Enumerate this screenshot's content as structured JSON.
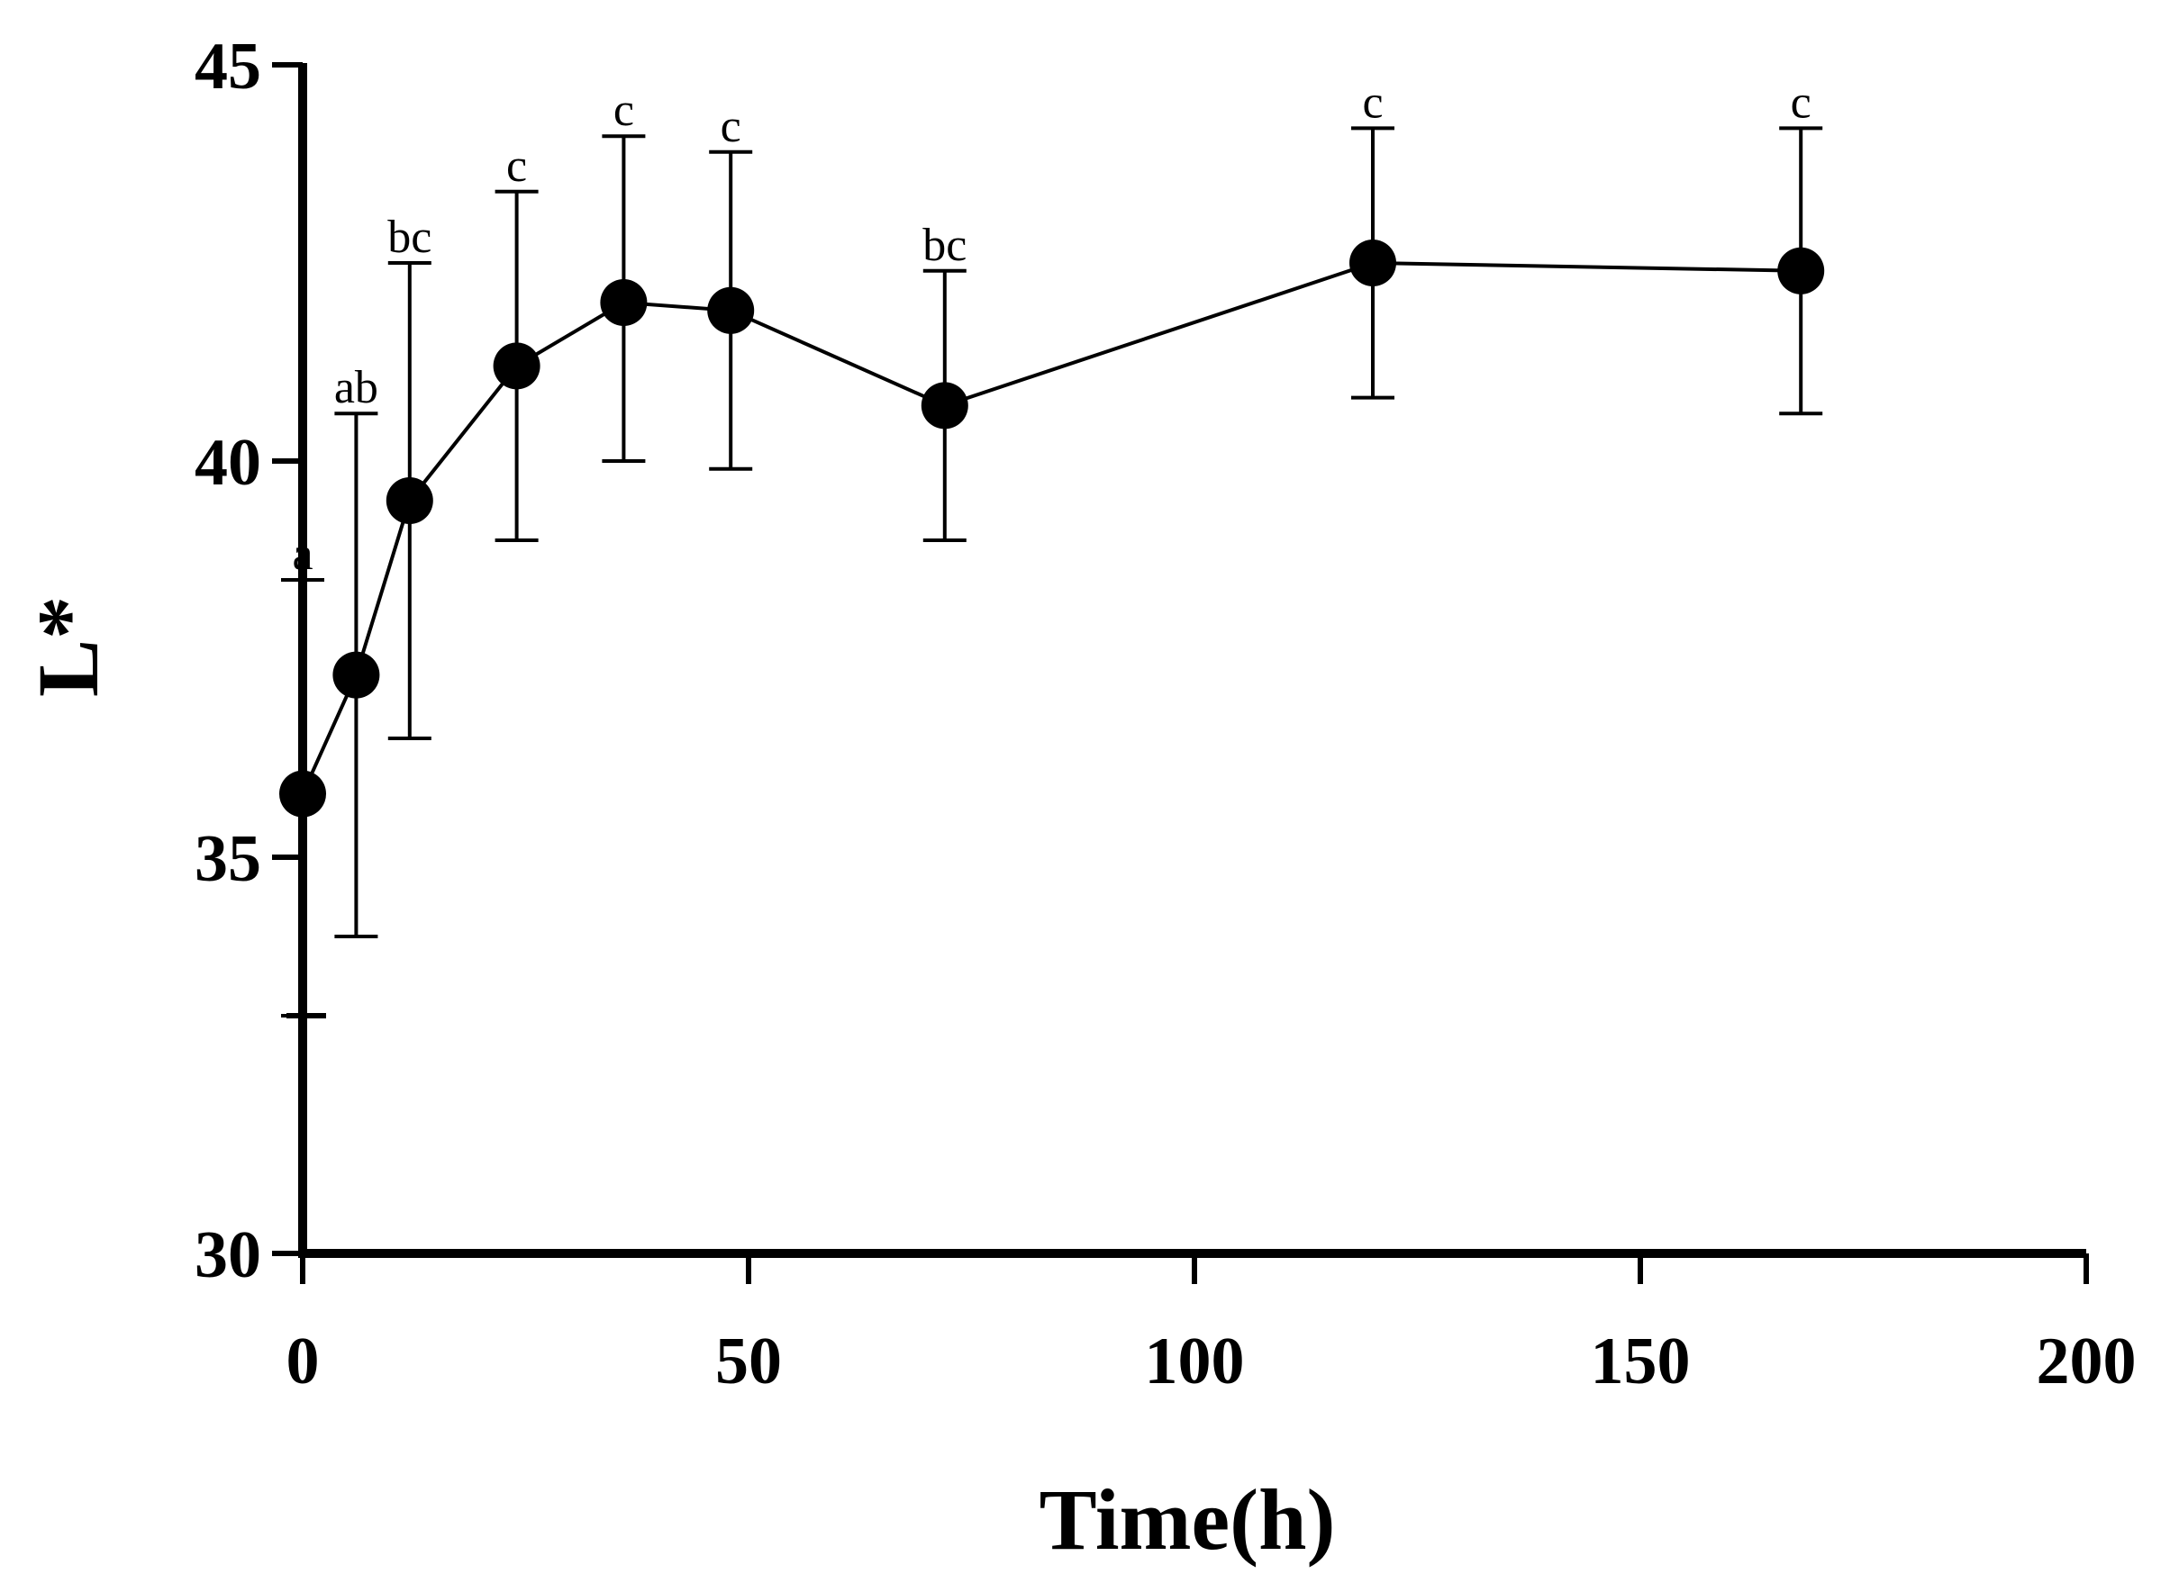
{
  "chart_data": {
    "type": "line",
    "title": "",
    "xlabel": "Time(h)",
    "ylabel": "L*",
    "xlim": [
      0,
      200
    ],
    "ylim": [
      30,
      45
    ],
    "xticks": [
      0,
      50,
      100,
      150,
      200
    ],
    "yticks": [
      30,
      35,
      40,
      45
    ],
    "extra_yticks": [
      33
    ],
    "grid": false,
    "series": [
      {
        "name": "L*",
        "color": "#000000",
        "points": [
          {
            "x": 0,
            "y": 35.8,
            "err_low": 33.0,
            "err_high": 38.5,
            "label": "a"
          },
          {
            "x": 6,
            "y": 37.3,
            "err_low": 34.0,
            "err_high": 40.6,
            "label": "ab"
          },
          {
            "x": 12,
            "y": 39.5,
            "err_low": 36.5,
            "err_high": 42.5,
            "label": "bc"
          },
          {
            "x": 24,
            "y": 41.2,
            "err_low": 39.0,
            "err_high": 43.4,
            "label": "c"
          },
          {
            "x": 36,
            "y": 42.0,
            "err_low": 40.0,
            "err_high": 44.1,
            "label": "c"
          },
          {
            "x": 48,
            "y": 41.9,
            "err_low": 39.9,
            "err_high": 43.9,
            "label": "c"
          },
          {
            "x": 72,
            "y": 40.7,
            "err_low": 39.0,
            "err_high": 42.4,
            "label": "bc"
          },
          {
            "x": 120,
            "y": 42.5,
            "err_low": 40.8,
            "err_high": 44.2,
            "label": "c"
          },
          {
            "x": 168,
            "y": 42.4,
            "err_low": 40.6,
            "err_high": 44.2,
            "label": "c"
          }
        ]
      }
    ]
  }
}
